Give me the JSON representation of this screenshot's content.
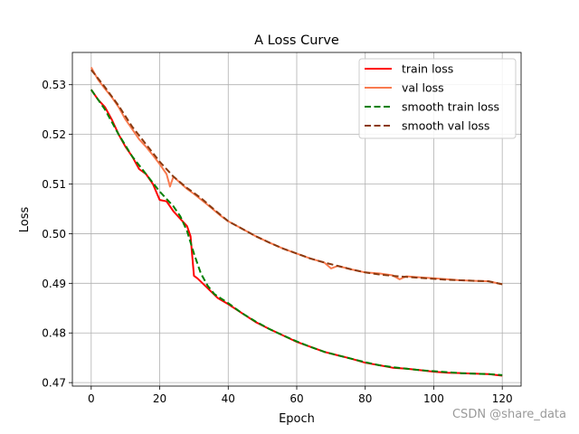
{
  "chart_data": {
    "type": "line",
    "title": "A Loss Curve",
    "xlabel": "Epoch",
    "ylabel": "Loss",
    "xlim": [
      -5.5,
      125.5
    ],
    "ylim": [
      0.4693,
      0.5365
    ],
    "xticks": [
      0,
      20,
      40,
      60,
      80,
      100,
      120
    ],
    "yticks": [
      0.47,
      0.48,
      0.49,
      0.5,
      0.51,
      0.52,
      0.53
    ],
    "ytick_labels": [
      "0.47",
      "0.48",
      "0.49",
      "0.50",
      "0.51",
      "0.52",
      "0.53"
    ],
    "grid": true,
    "legend_position": "top-right",
    "series": [
      {
        "name": "train loss",
        "color": "#ff0000",
        "style": "solid",
        "x": [
          0,
          2,
          4,
          6,
          8,
          10,
          12,
          14,
          16,
          18,
          20,
          22,
          24,
          26,
          28,
          29,
          30,
          31,
          34,
          37,
          40,
          44,
          48,
          52,
          56,
          60,
          64,
          68,
          72,
          76,
          80,
          84,
          88,
          92,
          96,
          100,
          104,
          108,
          112,
          116,
          120
        ],
        "values": [
          0.529,
          0.527,
          0.5255,
          0.523,
          0.52,
          0.5175,
          0.5155,
          0.513,
          0.512,
          0.51,
          0.5068,
          0.5065,
          0.5045,
          0.503,
          0.5015,
          0.4995,
          0.4915,
          0.491,
          0.489,
          0.487,
          0.4858,
          0.484,
          0.4822,
          0.4808,
          0.4795,
          0.4782,
          0.4772,
          0.4762,
          0.4755,
          0.4748,
          0.474,
          0.4735,
          0.473,
          0.4728,
          0.4725,
          0.4722,
          0.472,
          0.4719,
          0.4718,
          0.4717,
          0.4714
        ]
      },
      {
        "name": "val loss",
        "color": "#f97b4f",
        "style": "solid",
        "x": [
          0,
          2,
          4,
          6,
          8,
          10,
          12,
          14,
          16,
          18,
          20,
          22,
          23,
          24,
          26,
          28,
          30,
          34,
          38,
          40,
          44,
          48,
          52,
          56,
          60,
          64,
          68,
          70,
          72,
          76,
          80,
          84,
          88,
          90,
          92,
          96,
          100,
          104,
          108,
          112,
          116,
          120
        ],
        "values": [
          0.5335,
          0.531,
          0.5292,
          0.5275,
          0.5255,
          0.523,
          0.521,
          0.519,
          0.5175,
          0.5158,
          0.514,
          0.512,
          0.5095,
          0.5115,
          0.5102,
          0.509,
          0.508,
          0.5058,
          0.5035,
          0.5025,
          0.501,
          0.4995,
          0.4982,
          0.497,
          0.496,
          0.495,
          0.4942,
          0.493,
          0.4935,
          0.4928,
          0.4922,
          0.492,
          0.4916,
          0.4908,
          0.4914,
          0.4912,
          0.491,
          0.4908,
          0.4906,
          0.4905,
          0.4904,
          0.4898
        ]
      },
      {
        "name": "smooth train loss",
        "color": "#008000",
        "style": "dashed",
        "x": [
          0,
          4,
          8,
          12,
          16,
          20,
          24,
          26,
          28,
          30,
          32,
          34,
          36,
          40,
          44,
          48,
          52,
          56,
          60,
          64,
          68,
          72,
          76,
          80,
          84,
          88,
          92,
          96,
          100,
          104,
          108,
          112,
          116,
          120
        ],
        "values": [
          0.529,
          0.525,
          0.52,
          0.5155,
          0.512,
          0.5085,
          0.5055,
          0.5035,
          0.5005,
          0.496,
          0.492,
          0.4895,
          0.4878,
          0.486,
          0.484,
          0.4823,
          0.4808,
          0.4795,
          0.4783,
          0.4772,
          0.4762,
          0.4755,
          0.4748,
          0.4741,
          0.4735,
          0.4731,
          0.4728,
          0.4725,
          0.4723,
          0.4721,
          0.4719,
          0.4718,
          0.4717,
          0.4715
        ]
      },
      {
        "name": "smooth val loss",
        "color": "#8b3a0f",
        "style": "dashed",
        "x": [
          0,
          4,
          8,
          12,
          16,
          20,
          24,
          28,
          32,
          36,
          40,
          44,
          48,
          52,
          56,
          60,
          64,
          68,
          72,
          76,
          80,
          84,
          88,
          92,
          96,
          100,
          104,
          108,
          112,
          116,
          120
        ],
        "values": [
          0.533,
          0.5295,
          0.5258,
          0.5215,
          0.518,
          0.5145,
          0.5115,
          0.5092,
          0.5072,
          0.5048,
          0.5025,
          0.501,
          0.4995,
          0.4982,
          0.497,
          0.496,
          0.495,
          0.4942,
          0.4935,
          0.4928,
          0.4922,
          0.4918,
          0.4915,
          0.4913,
          0.4911,
          0.4909,
          0.4907,
          0.4906,
          0.4905,
          0.4904,
          0.4898
        ]
      }
    ]
  },
  "watermark": "CSDN @share_data"
}
